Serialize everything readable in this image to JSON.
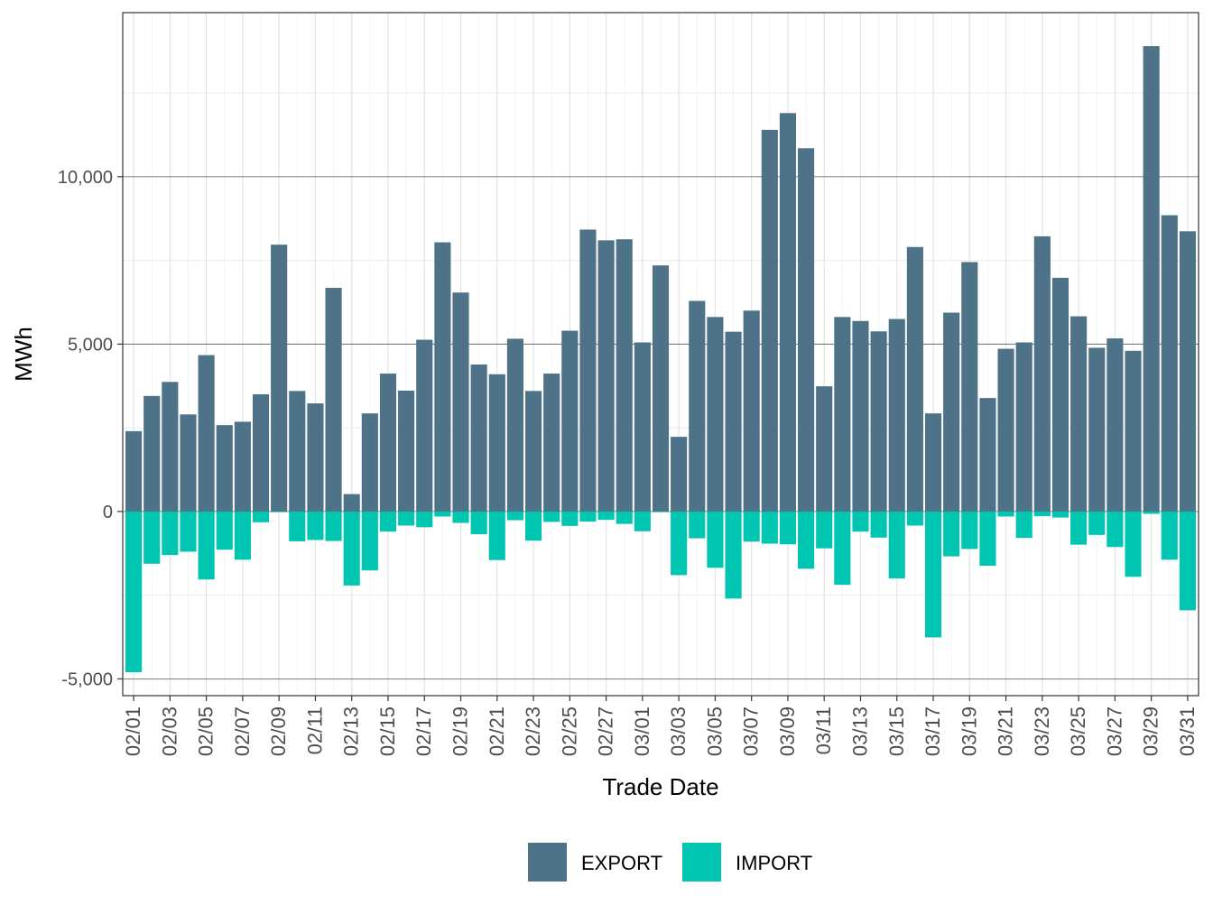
{
  "chart_data": {
    "type": "bar",
    "stacked": true,
    "xlabel": "Trade Date",
    "ylabel": "MWh",
    "ylim": [
      -5500,
      14900
    ],
    "yticks": [
      -5000,
      0,
      5000,
      10000
    ],
    "ytick_labels": [
      "-5,000",
      "0",
      "5,000",
      "10,000"
    ],
    "grid": true,
    "legend_position": "bottom",
    "x": [
      "02/01",
      "02/02",
      "02/03",
      "02/04",
      "02/05",
      "02/06",
      "02/07",
      "02/08",
      "02/09",
      "02/10",
      "02/11",
      "02/12",
      "02/13",
      "02/14",
      "02/15",
      "02/16",
      "02/17",
      "02/18",
      "02/19",
      "02/20",
      "02/21",
      "02/22",
      "02/23",
      "02/24",
      "02/25",
      "02/26",
      "02/27",
      "02/28",
      "03/01",
      "03/02",
      "03/03",
      "03/04",
      "03/05",
      "03/06",
      "03/07",
      "03/08",
      "03/09",
      "03/10",
      "03/11",
      "03/12",
      "03/13",
      "03/14",
      "03/15",
      "03/16",
      "03/17",
      "03/18",
      "03/19",
      "03/20",
      "03/21",
      "03/22",
      "03/23",
      "03/24",
      "03/25",
      "03/26",
      "03/27",
      "03/28",
      "03/29",
      "03/30",
      "03/31"
    ],
    "xtick_labels": [
      "02/01",
      "02/03",
      "02/05",
      "02/07",
      "02/09",
      "02/11",
      "02/13",
      "02/15",
      "02/17",
      "02/19",
      "02/21",
      "02/23",
      "02/25",
      "02/27",
      "03/01",
      "03/03",
      "03/05",
      "03/07",
      "03/09",
      "03/11",
      "03/13",
      "03/15",
      "03/17",
      "03/19",
      "03/21",
      "03/23",
      "03/25",
      "03/27",
      "03/29",
      "03/31"
    ],
    "series": [
      {
        "name": "EXPORT",
        "color": "#4e7389",
        "values": [
          2400,
          3450,
          3870,
          2900,
          4670,
          2580,
          2680,
          3500,
          7970,
          3600,
          3230,
          6680,
          520,
          2930,
          4120,
          3610,
          5130,
          8040,
          6540,
          4390,
          4100,
          5160,
          3600,
          4120,
          5400,
          8420,
          8100,
          8130,
          5050,
          7350,
          2230,
          6290,
          5810,
          5370,
          6000,
          11400,
          11900,
          10850,
          3740,
          5810,
          5690,
          5380,
          5750,
          7900,
          2930,
          5940,
          7450,
          3390,
          4860,
          5050,
          8220,
          6980,
          5830,
          4890,
          5170,
          4800,
          13900,
          8850,
          8370
        ]
      },
      {
        "name": "IMPORT",
        "color": "#00c5b0",
        "values": [
          -4800,
          -1560,
          -1300,
          -1200,
          -2030,
          -1140,
          -1440,
          -320,
          -20,
          -890,
          -850,
          -880,
          -2210,
          -1760,
          -600,
          -420,
          -470,
          -150,
          -340,
          -680,
          -1450,
          -260,
          -870,
          -310,
          -430,
          -300,
          -250,
          -370,
          -590,
          -20,
          -1900,
          -800,
          -1680,
          -2600,
          -900,
          -960,
          -980,
          -1710,
          -1100,
          -2190,
          -600,
          -780,
          -2000,
          -420,
          -3760,
          -1340,
          -1120,
          -1620,
          -150,
          -790,
          -140,
          -180,
          -990,
          -700,
          -1060,
          -1950,
          -70,
          -1440,
          -2950
        ]
      }
    ]
  }
}
